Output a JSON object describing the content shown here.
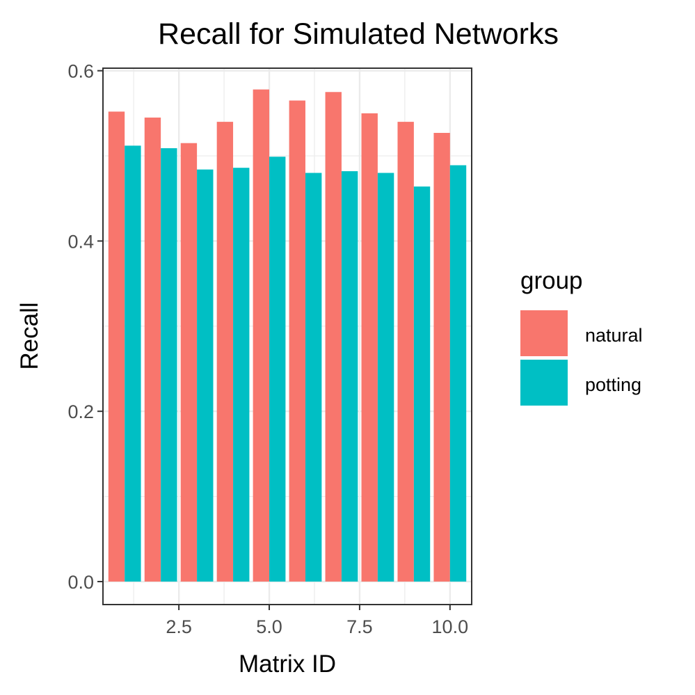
{
  "chart_data": {
    "type": "bar",
    "title": "Recall for Simulated Networks",
    "xlabel": "Matrix ID",
    "ylabel": "Recall",
    "x": [
      1,
      2,
      3,
      4,
      5,
      6,
      7,
      8,
      9,
      10
    ],
    "xlim": [
      0.4,
      10.6
    ],
    "ylim": [
      -0.027,
      0.603
    ],
    "xticks": [
      2.5,
      5.0,
      7.5,
      10.0
    ],
    "xtick_labels": [
      "2.5",
      "5.0",
      "7.5",
      "10.0"
    ],
    "yticks": [
      0.0,
      0.2,
      0.4,
      0.6
    ],
    "ytick_labels": [
      "0.0",
      "0.2",
      "0.4",
      "0.6"
    ],
    "grid": true,
    "legend": {
      "title": "group",
      "position": "right"
    },
    "series": [
      {
        "name": "natural",
        "color": "#F8766D",
        "values": [
          0.552,
          0.545,
          0.515,
          0.54,
          0.578,
          0.565,
          0.575,
          0.55,
          0.54,
          0.527
        ]
      },
      {
        "name": "potting",
        "color": "#00BFC4",
        "values": [
          0.512,
          0.509,
          0.484,
          0.486,
          0.499,
          0.48,
          0.482,
          0.48,
          0.464,
          0.489
        ]
      }
    ]
  }
}
